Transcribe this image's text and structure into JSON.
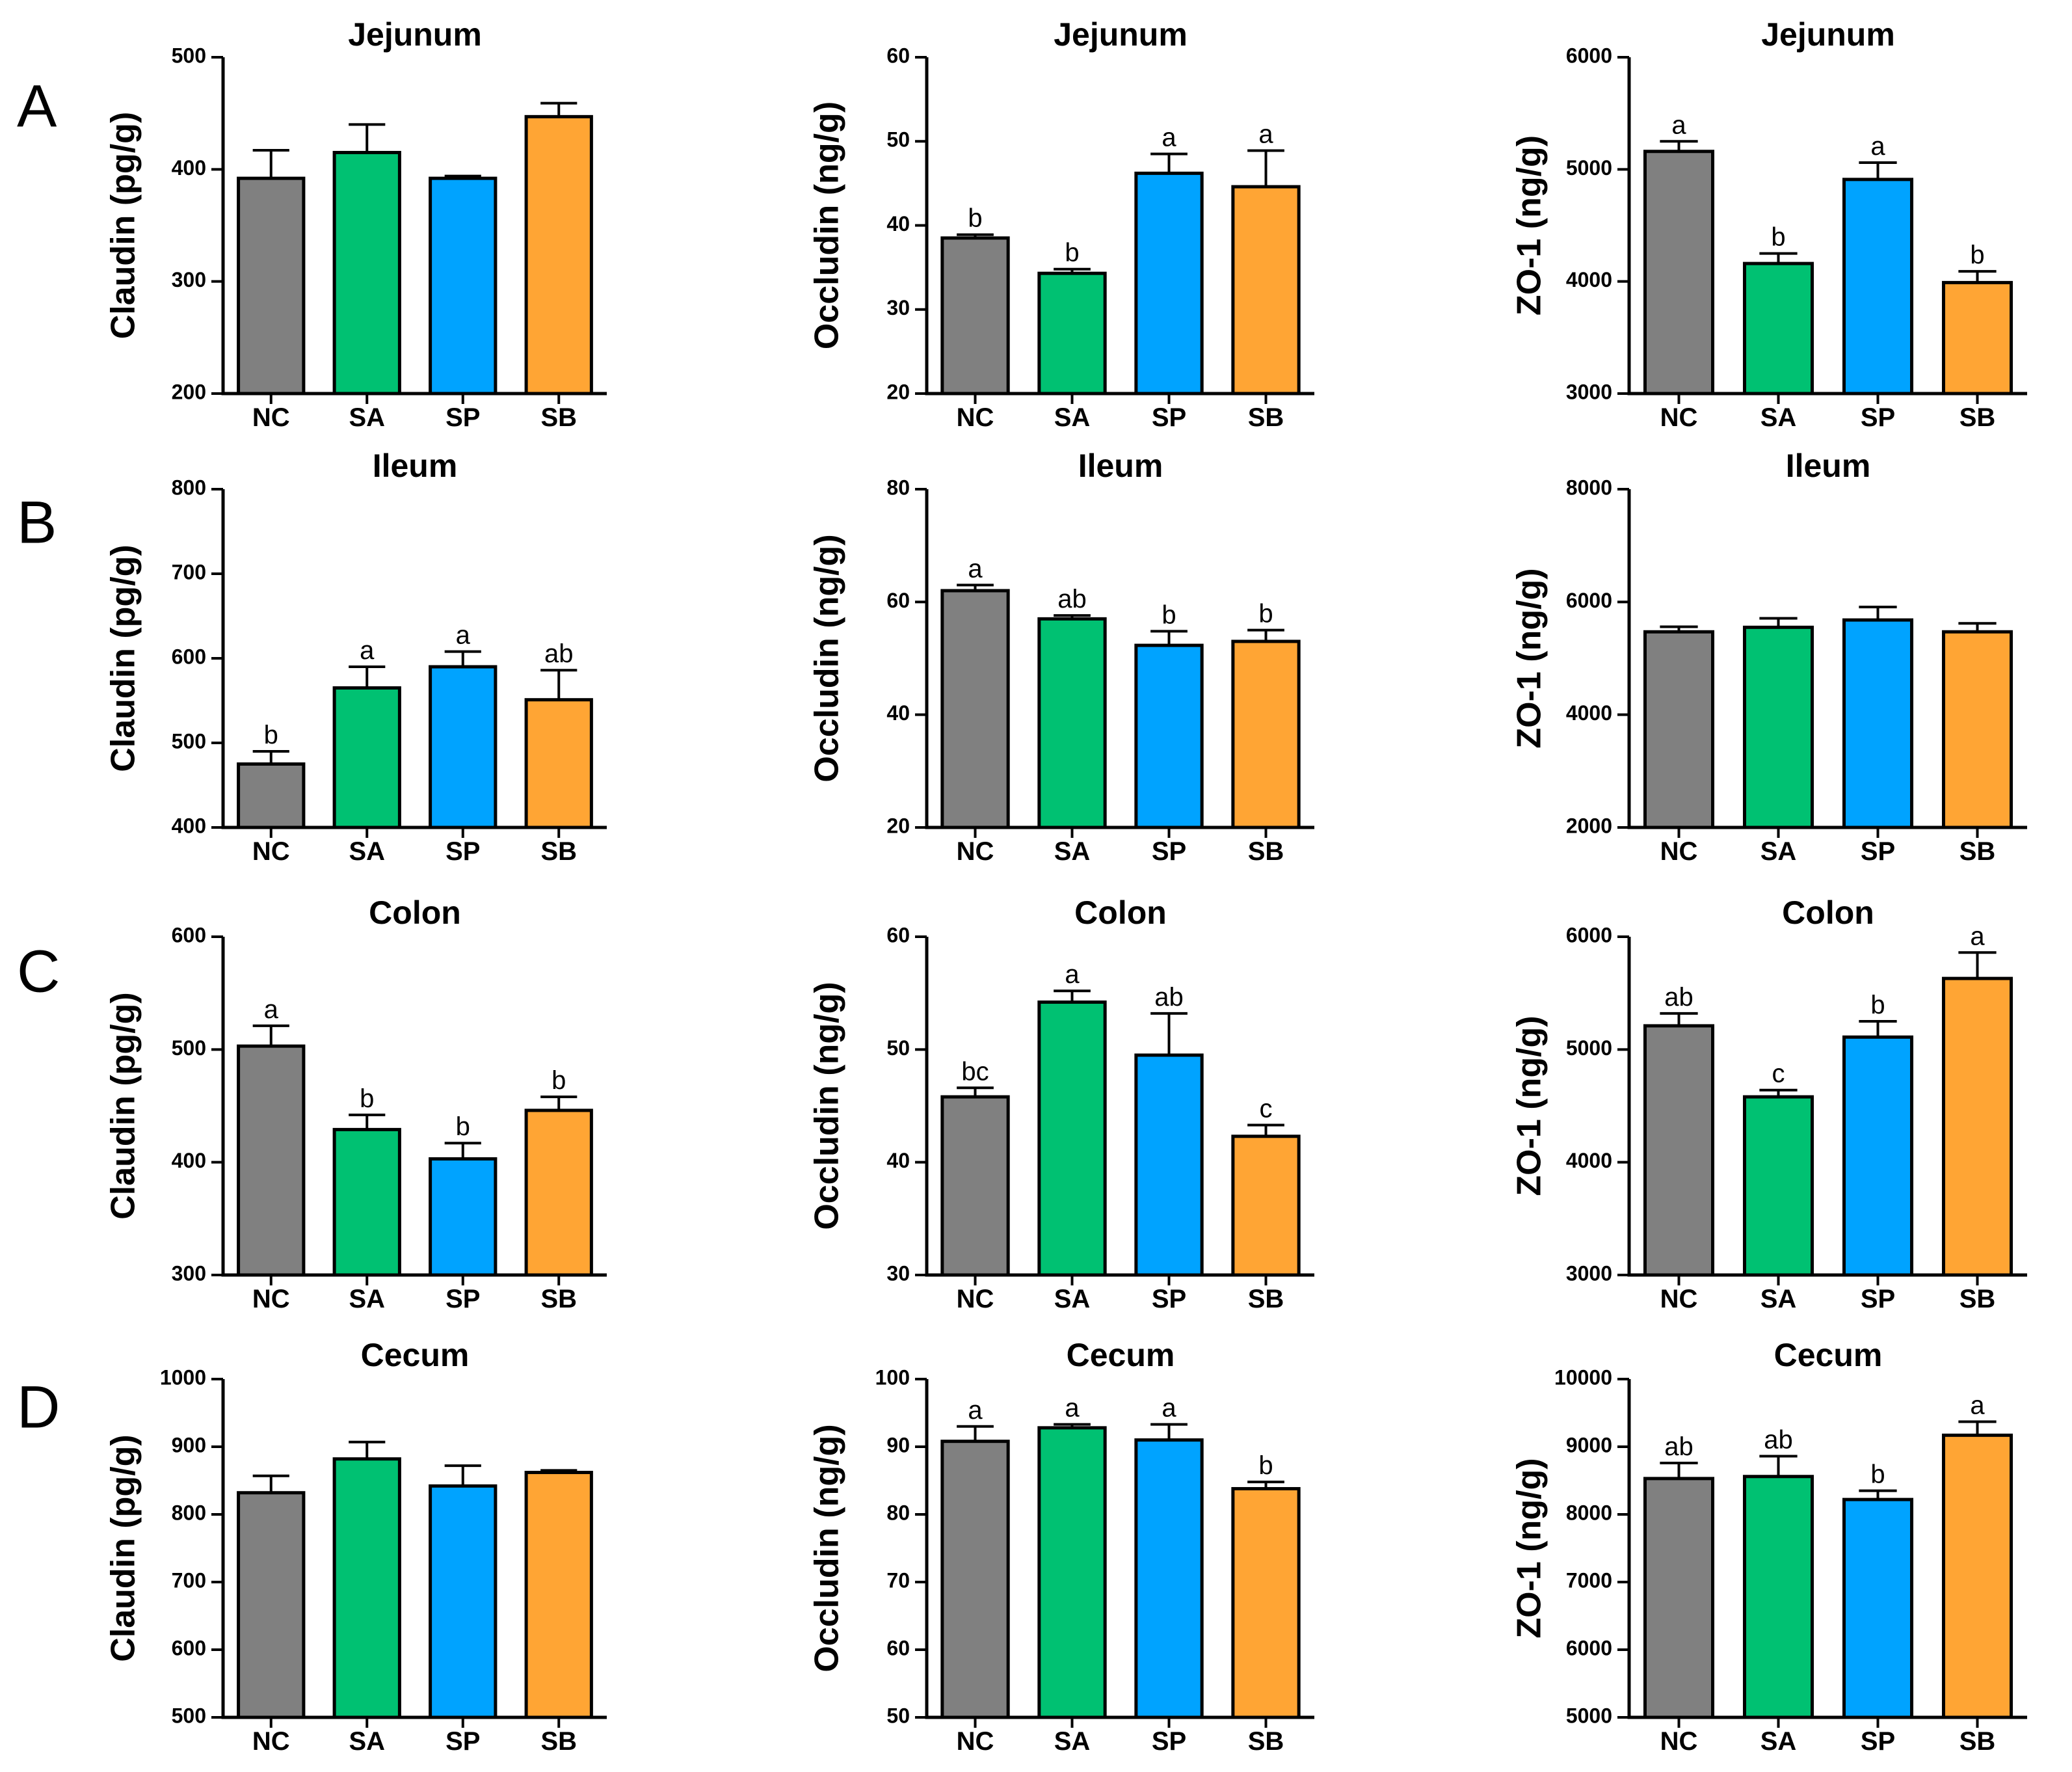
{
  "colors": {
    "NC": "#808080",
    "SA": "#00c172",
    "SP": "#00a3ff",
    "SB": "#ffa534",
    "axis": "#000000"
  },
  "row_labels": [
    "A",
    "B",
    "C",
    "D"
  ],
  "chart_data": [
    {
      "id": "A-claudin",
      "row": 0,
      "col": 0,
      "type": "bar",
      "title": "Jejunum",
      "ylabel": "Claudin (pg/g)",
      "categories": [
        "NC",
        "SA",
        "SP",
        "SB"
      ],
      "values": [
        392,
        415,
        392,
        447
      ],
      "errors": [
        25,
        25,
        2,
        12
      ],
      "sig": [
        "",
        "",
        "",
        ""
      ],
      "ylim": [
        200,
        500
      ],
      "yticks": [
        200,
        300,
        400,
        500
      ]
    },
    {
      "id": "A-occludin",
      "row": 0,
      "col": 1,
      "type": "bar",
      "title": "Jejunum",
      "ylabel": "Occludin (ng/g)",
      "categories": [
        "NC",
        "SA",
        "SP",
        "SB"
      ],
      "values": [
        38.5,
        34.3,
        46.2,
        44.6
      ],
      "errors": [
        0.4,
        0.5,
        2.3,
        4.3
      ],
      "sig": [
        "b",
        "b",
        "a",
        "a"
      ],
      "ylim": [
        20,
        60
      ],
      "yticks": [
        20,
        30,
        40,
        50,
        60
      ]
    },
    {
      "id": "A-zo1",
      "row": 0,
      "col": 2,
      "type": "bar",
      "title": "Jejunum",
      "ylabel": "ZO-1 (ng/g)",
      "categories": [
        "NC",
        "SA",
        "SP",
        "SB"
      ],
      "values": [
        5160,
        4160,
        4910,
        3990
      ],
      "errors": [
        90,
        90,
        150,
        100
      ],
      "sig": [
        "a",
        "b",
        "a",
        "b"
      ],
      "ylim": [
        3000,
        6000
      ],
      "yticks": [
        3000,
        4000,
        5000,
        6000
      ]
    },
    {
      "id": "B-claudin",
      "row": 1,
      "col": 0,
      "type": "bar",
      "title": "Ileum",
      "ylabel": "Claudin (pg/g)",
      "categories": [
        "NC",
        "SA",
        "SP",
        "SB"
      ],
      "values": [
        475,
        565,
        590,
        551
      ],
      "errors": [
        15,
        25,
        18,
        35
      ],
      "sig": [
        "b",
        "a",
        "a",
        "ab"
      ],
      "ylim": [
        400,
        800
      ],
      "yticks": [
        400,
        500,
        600,
        700,
        800
      ]
    },
    {
      "id": "B-occludin",
      "row": 1,
      "col": 1,
      "type": "bar",
      "title": "Ileum",
      "ylabel": "Occludin (ng/g)",
      "categories": [
        "NC",
        "SA",
        "SP",
        "SB"
      ],
      "values": [
        62,
        57,
        52.3,
        53
      ],
      "errors": [
        1,
        0.6,
        2.5,
        2
      ],
      "sig": [
        "a",
        "ab",
        "b",
        "b"
      ],
      "ylim": [
        20,
        80
      ],
      "yticks": [
        20,
        40,
        60,
        80
      ]
    },
    {
      "id": "B-zo1",
      "row": 1,
      "col": 2,
      "type": "bar",
      "title": "Ileum",
      "ylabel": "ZO-1 (ng/g)",
      "categories": [
        "NC",
        "SA",
        "SP",
        "SB"
      ],
      "values": [
        5470,
        5550,
        5680,
        5470
      ],
      "errors": [
        90,
        160,
        230,
        150
      ],
      "sig": [
        "",
        "",
        "",
        ""
      ],
      "ylim": [
        2000,
        8000
      ],
      "yticks": [
        2000,
        4000,
        6000,
        8000
      ]
    },
    {
      "id": "C-claudin",
      "row": 2,
      "col": 0,
      "type": "bar",
      "title": "Colon",
      "ylabel": "Claudin (pg/g)",
      "categories": [
        "NC",
        "SA",
        "SP",
        "SB"
      ],
      "values": [
        503,
        429,
        403,
        446
      ],
      "errors": [
        18,
        13,
        14,
        12
      ],
      "sig": [
        "a",
        "b",
        "b",
        "b"
      ],
      "ylim": [
        300,
        600
      ],
      "yticks": [
        300,
        400,
        500,
        600
      ]
    },
    {
      "id": "C-occludin",
      "row": 2,
      "col": 1,
      "type": "bar",
      "title": "Colon",
      "ylabel": "Occludin (ng/g)",
      "categories": [
        "NC",
        "SA",
        "SP",
        "SB"
      ],
      "values": [
        45.8,
        54.2,
        49.5,
        42.3
      ],
      "errors": [
        0.8,
        1,
        3.7,
        1
      ],
      "sig": [
        "bc",
        "a",
        "ab",
        "c"
      ],
      "ylim": [
        30,
        60
      ],
      "yticks": [
        30,
        40,
        50,
        60
      ]
    },
    {
      "id": "C-zo1",
      "row": 2,
      "col": 2,
      "type": "bar",
      "title": "Colon",
      "ylabel": "ZO-1 (ng/g)",
      "categories": [
        "NC",
        "SA",
        "SP",
        "SB"
      ],
      "values": [
        5210,
        4580,
        5110,
        5630
      ],
      "errors": [
        110,
        60,
        140,
        230
      ],
      "sig": [
        "ab",
        "c",
        "b",
        "a"
      ],
      "ylim": [
        3000,
        6000
      ],
      "yticks": [
        3000,
        4000,
        5000,
        6000
      ]
    },
    {
      "id": "D-claudin",
      "row": 3,
      "col": 0,
      "type": "bar",
      "title": "Cecum",
      "ylabel": "Claudin (pg/g)",
      "categories": [
        "NC",
        "SA",
        "SP",
        "SB"
      ],
      "values": [
        832,
        882,
        842,
        862
      ],
      "errors": [
        25,
        25,
        30,
        3
      ],
      "sig": [
        "",
        "",
        "",
        ""
      ],
      "ylim": [
        500,
        1000
      ],
      "yticks": [
        500,
        600,
        700,
        800,
        900,
        1000
      ]
    },
    {
      "id": "D-occludin",
      "row": 3,
      "col": 1,
      "type": "bar",
      "title": "Cecum",
      "ylabel": "Occludin (ng/g)",
      "categories": [
        "NC",
        "SA",
        "SP",
        "SB"
      ],
      "values": [
        90.8,
        92.8,
        91,
        83.8
      ],
      "errors": [
        2.2,
        0.5,
        2.3,
        1
      ],
      "sig": [
        "a",
        "a",
        "a",
        "b"
      ],
      "ylim": [
        50,
        100
      ],
      "yticks": [
        50,
        60,
        70,
        80,
        90,
        100
      ]
    },
    {
      "id": "D-zo1",
      "row": 3,
      "col": 2,
      "type": "bar",
      "title": "Cecum",
      "ylabel": "ZO-1 (ng/g)",
      "categories": [
        "NC",
        "SA",
        "SP",
        "SB"
      ],
      "values": [
        8530,
        8560,
        8220,
        9170
      ],
      "errors": [
        230,
        300,
        130,
        200
      ],
      "sig": [
        "ab",
        "ab",
        "b",
        "a"
      ],
      "ylim": [
        5000,
        10000
      ],
      "yticks": [
        5000,
        6000,
        7000,
        8000,
        9000,
        10000
      ]
    }
  ]
}
